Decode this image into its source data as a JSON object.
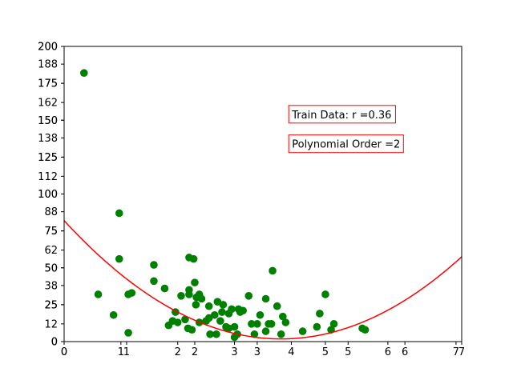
{
  "chart_data": {
    "type": "scatter",
    "title": "",
    "xlabel": "",
    "ylabel": "",
    "xlim": [
      0,
      7
    ],
    "ylim": [
      0,
      200
    ],
    "grid": false,
    "xticks": [
      0,
      1,
      2,
      3,
      4,
      5,
      6,
      7
    ],
    "xticks_overlay": [
      0,
      1.1,
      2.3,
      3.4,
      4.6,
      5.7,
      6.9
    ],
    "yticks": [
      0,
      25,
      50,
      75,
      100,
      125,
      150,
      175,
      200
    ],
    "yticks_overlay": [
      0,
      12,
      25,
      38,
      50,
      62,
      75,
      88,
      100,
      112,
      125,
      138,
      150,
      162,
      175,
      188,
      200
    ],
    "colors": {
      "points": "#008000",
      "curve": "#ff0000",
      "annotation_border": "#ff0000"
    },
    "annotations": [
      {
        "text": "Train Data: r =0.36",
        "position": "upper-right"
      },
      {
        "text": "Polynomial Order =2",
        "position": "upper-right"
      }
    ],
    "series": [
      {
        "type": "scatter",
        "points": [
          [
            0.35,
            182
          ],
          [
            0.97,
            87
          ],
          [
            0.97,
            56
          ],
          [
            0.6,
            32
          ],
          [
            0.87,
            18
          ],
          [
            1.13,
            6
          ],
          [
            1.13,
            32
          ],
          [
            1.19,
            33
          ],
          [
            1.58,
            52
          ],
          [
            1.58,
            41
          ],
          [
            1.77,
            36
          ],
          [
            1.84,
            11
          ],
          [
            1.91,
            14
          ],
          [
            1.96,
            20
          ],
          [
            2.0,
            13
          ],
          [
            2.06,
            31
          ],
          [
            2.13,
            15
          ],
          [
            2.18,
            9
          ],
          [
            2.2,
            57
          ],
          [
            2.28,
            56
          ],
          [
            2.2,
            35
          ],
          [
            2.2,
            32
          ],
          [
            2.3,
            40
          ],
          [
            2.32,
            25
          ],
          [
            2.33,
            30
          ],
          [
            2.38,
            13
          ],
          [
            2.38,
            32
          ],
          [
            2.42,
            29
          ],
          [
            2.25,
            8
          ],
          [
            2.5,
            14
          ],
          [
            2.55,
            24
          ],
          [
            2.55,
            16
          ],
          [
            2.57,
            5
          ],
          [
            2.65,
            18
          ],
          [
            2.68,
            5
          ],
          [
            2.7,
            27
          ],
          [
            2.75,
            14
          ],
          [
            2.78,
            20
          ],
          [
            2.8,
            25
          ],
          [
            2.85,
            10
          ],
          [
            2.9,
            9
          ],
          [
            2.9,
            19
          ],
          [
            2.95,
            22
          ],
          [
            3.0,
            3
          ],
          [
            3.0,
            10
          ],
          [
            3.05,
            5
          ],
          [
            3.07,
            22
          ],
          [
            3.1,
            20
          ],
          [
            3.15,
            21
          ],
          [
            3.25,
            31
          ],
          [
            3.3,
            12
          ],
          [
            3.35,
            5
          ],
          [
            3.4,
            12
          ],
          [
            3.45,
            18
          ],
          [
            3.55,
            29
          ],
          [
            3.55,
            7
          ],
          [
            3.6,
            12
          ],
          [
            3.65,
            12
          ],
          [
            3.67,
            48
          ],
          [
            3.75,
            24
          ],
          [
            3.82,
            5
          ],
          [
            3.85,
            17
          ],
          [
            3.9,
            13
          ],
          [
            4.2,
            7
          ],
          [
            4.45,
            10
          ],
          [
            4.5,
            19
          ],
          [
            4.6,
            32
          ],
          [
            4.7,
            8
          ],
          [
            4.75,
            12
          ],
          [
            5.25,
            9
          ],
          [
            5.3,
            8
          ]
        ]
      },
      {
        "type": "line",
        "coefficients": [
          82,
          -42,
          5.5
        ]
      }
    ]
  }
}
